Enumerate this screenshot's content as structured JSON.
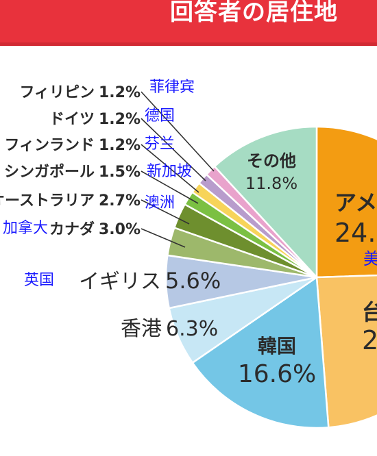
{
  "header": {
    "title": "回答者の居住地",
    "bg_color": "#e8323c"
  },
  "chart_data": {
    "type": "pie",
    "title": "回答者の居住地",
    "legend": "none",
    "slices": [
      {
        "key": "us",
        "label_ja": "アメ",
        "value_text": "24.",
        "translation": "美",
        "value": 24.4,
        "color": "#f39c12"
      },
      {
        "key": "tw",
        "label_ja": "台",
        "value_text": "24.",
        "translation": "",
        "value": 24.2,
        "color": "#f9c263"
      },
      {
        "key": "kr",
        "label_ja": "韓国",
        "value_text": "16.6%",
        "translation": "",
        "value": 16.6,
        "color": "#74c6e6"
      },
      {
        "key": "hk",
        "label_ja": "香港",
        "value_text": "6.3%",
        "translation": "",
        "value": 6.3,
        "color": "#c7e7f5"
      },
      {
        "key": "uk",
        "label_ja": "イギリス",
        "value_text": "5.6%",
        "translation": "英国",
        "value": 5.6,
        "color": "#b6c8e4"
      },
      {
        "key": "ca",
        "label_ja": "カナダ",
        "value_text": "3.0%",
        "translation": "加拿大",
        "value": 3.0,
        "color": "#9db86b"
      },
      {
        "key": "au",
        "label_ja": "オーストラリア",
        "value_text": "2.7%",
        "translation": "澳洲",
        "value": 2.7,
        "color": "#6e8f2e"
      },
      {
        "key": "sg",
        "label_ja": "シンガポール",
        "value_text": "1.5%",
        "translation": "新加坡",
        "value": 1.5,
        "color": "#7bc043"
      },
      {
        "key": "fi",
        "label_ja": "フィンランド",
        "value_text": "1.2%",
        "translation": "芬兰",
        "value": 1.2,
        "color": "#f7d45a"
      },
      {
        "key": "de",
        "label_ja": "ドイツ",
        "value_text": "1.2%",
        "translation": "德国",
        "value": 1.2,
        "color": "#b89ccc"
      },
      {
        "key": "ph",
        "label_ja": "フィリピン",
        "value_text": "1.2%",
        "translation": "菲律宾",
        "value": 1.2,
        "color": "#e9a3cc"
      },
      {
        "key": "other",
        "label_ja": "その他",
        "value_text": "11.8%",
        "translation": "",
        "value": 11.8,
        "color": "#a6dcc3"
      }
    ]
  },
  "colors": {
    "label_dark": "#2b2b2b",
    "translation_blue": "#1a1aff",
    "leader_line": "#333333"
  }
}
